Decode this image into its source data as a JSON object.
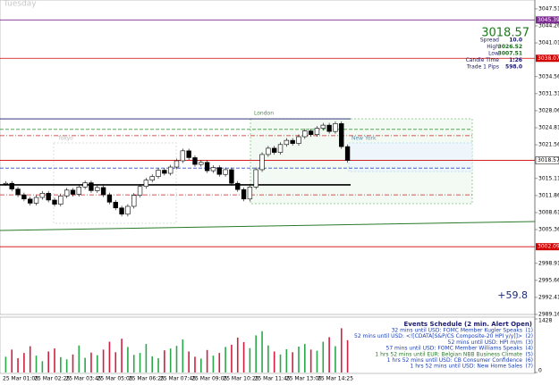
{
  "chart_data": {
    "type": "candlestick",
    "day_label": "Tuesday",
    "ylim": [
      2989.16,
      3049.2
    ],
    "yticks": [
      3047.51,
      3044.26,
      3041.01,
      3034.56,
      3031.31,
      3028.06,
      3024.81,
      3021.56,
      3015.11,
      3011.86,
      3008.61,
      3005.36,
      2998.91,
      2995.66,
      2992.41,
      2989.16
    ],
    "close": [
      3014.2,
      3013.1,
      3012.0,
      3011.2,
      3010.4,
      3011.5,
      3012.3,
      3011.0,
      3010.2,
      3011.8,
      3012.9,
      3012.1,
      3013.5,
      3014.3,
      3012.8,
      3013.4,
      3012.0,
      3010.6,
      3009.5,
      3008.3,
      3009.8,
      3011.9,
      3013.6,
      3014.8,
      3015.5,
      3016.7,
      3016.1,
      3017.3,
      3018.5,
      3020.4,
      3019.1,
      3017.8,
      3018.2,
      3016.6,
      3017.2,
      3015.9,
      3016.8,
      3014.2,
      3013.0,
      3011.2,
      3013.5,
      3016.8,
      3019.7,
      3020.9,
      3020.1,
      3021.6,
      3022.4,
      3021.8,
      3023.1,
      3024.2,
      3023.5,
      3024.7,
      3025.3,
      3024.1,
      3025.6,
      3021.2,
      3018.57
    ],
    "volume": [
      420,
      610,
      380,
      520,
      700,
      450,
      300,
      560,
      640,
      410,
      350,
      480,
      720,
      390,
      530,
      460,
      610,
      820,
      540,
      900,
      680,
      470,
      520,
      760,
      430,
      380,
      590,
      640,
      710,
      880,
      560,
      420,
      370,
      600,
      450,
      520,
      680,
      740,
      930,
      810,
      650,
      990,
      1100,
      720,
      560,
      480,
      620,
      540,
      690,
      760,
      610,
      580,
      820,
      940,
      700,
      1180,
      860
    ],
    "volume_ylim": [
      0,
      1428
    ],
    "volume_yticks": [
      1428,
      0
    ],
    "time_labels": [
      "25 Mar 01:05",
      "25 Mar 02:25",
      "25 Mar 03:45",
      "25 Mar 05:05",
      "25 Mar 06:25",
      "25 Mar 07:45",
      "25 Mar 09:05",
      "25 Mar 10:25",
      "25 Mar 11:45",
      "25 Mar 13:05",
      "25 Mar 14:25"
    ],
    "labeled_levels": [
      {
        "price": 3045.39,
        "color": "#7b2c8f"
      },
      {
        "price": 3038.07,
        "color": "#d00000"
      },
      {
        "price": 3018.57,
        "color": "#d00000"
      },
      {
        "price": 3002.09,
        "color": "#d00000"
      }
    ],
    "levels": [
      {
        "price": 3026.5,
        "color": "#1a1a6e",
        "style": "solid"
      },
      {
        "price": 3013.9,
        "color": "#000000",
        "style": "thick"
      },
      {
        "price": 3024.5,
        "color": "#3a9a3a",
        "style": "dash"
      },
      {
        "price": 3023.3,
        "color": "#c02020",
        "style": "dashdot"
      },
      {
        "price": 3017.1,
        "color": "#3050c0",
        "style": "dash"
      },
      {
        "price": 3012.0,
        "color": "#c02020",
        "style": "dashdot"
      }
    ],
    "trendline": {
      "start": 3005.2,
      "end": 3006.9,
      "color": "#2a7a2a"
    },
    "sessions": [
      "Tokyo",
      "London",
      "New York"
    ],
    "info": {
      "price": "3018.57",
      "rows": [
        [
          "Spread",
          "10.0"
        ],
        [
          "High",
          "3026.52"
        ],
        [
          "Low",
          "3007.51"
        ],
        [
          "Candle Time",
          "1:26"
        ],
        [
          "Trade 1 Pips",
          "598.0"
        ]
      ]
    },
    "pips_change": "+59.8",
    "events": {
      "title": "Events Schedule (2 min. Alert Open)",
      "items": [
        [
          "32 mins until USD: FOMC Member Kugler Speaks",
          "(1)"
        ],
        [
          "52 mins until USD: <![CDATA[S&P/CS Composite-20 HPI y/y]]>",
          "(2)"
        ],
        [
          "52 mins until USD: HPI m/m",
          "(3)"
        ],
        [
          "57 mins until USD: FOMC Member Williams Speaks",
          "(4)"
        ],
        [
          "1 hrs 52 mins until EUR: Belgian NBB Business Climate",
          "(5)"
        ],
        [
          "1 hrs 52 mins until USD: CB Consumer Confidence",
          "(6)"
        ],
        [
          "1 hrs 52 mins until USD: New Home Sales",
          "(7)"
        ]
      ]
    }
  }
}
